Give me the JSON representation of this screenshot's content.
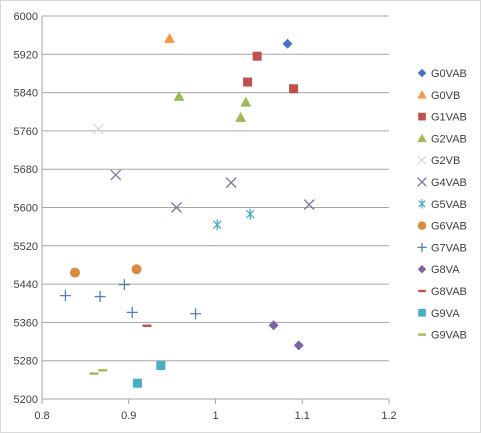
{
  "chart_data": {
    "type": "scatter",
    "xlim": [
      0.8,
      1.2
    ],
    "ylim": [
      5200,
      6000
    ],
    "xticks": [
      "0.8",
      "0.9",
      "1",
      "1.1",
      "1.2"
    ],
    "yticks": [
      "5200",
      "5280",
      "5360",
      "5440",
      "5520",
      "5600",
      "5680",
      "5760",
      "5840",
      "5920",
      "6000"
    ],
    "grid": "horizontal",
    "legend_position": "right",
    "series": [
      {
        "name": "G0VAB",
        "marker": "diamond",
        "color": "#4472C4",
        "points": [
          [
            1.083,
            5942
          ]
        ]
      },
      {
        "name": "G0VB",
        "marker": "triangle",
        "color": "#F79646",
        "points": [
          [
            0.947,
            5953
          ]
        ]
      },
      {
        "name": "G1VAB",
        "marker": "square",
        "color": "#C0504D",
        "points": [
          [
            1.048,
            5916
          ],
          [
            1.037,
            5862
          ],
          [
            1.09,
            5848
          ]
        ]
      },
      {
        "name": "G2VAB",
        "marker": "triangle",
        "color": "#9BBB59",
        "points": [
          [
            0.958,
            5832
          ],
          [
            1.035,
            5820
          ],
          [
            1.029,
            5788
          ]
        ]
      },
      {
        "name": "G2VB",
        "marker": "x",
        "color": "#D9D9D9",
        "points": [
          [
            0.865,
            5764
          ]
        ]
      },
      {
        "name": "G4VAB",
        "marker": "x",
        "color": "#7F74A8",
        "points": [
          [
            0.885,
            5668
          ],
          [
            1.018,
            5652
          ],
          [
            0.955,
            5600
          ],
          [
            1.108,
            5606
          ]
        ]
      },
      {
        "name": "G5VAB",
        "marker": "asterisk",
        "color": "#4BACC6",
        "points": [
          [
            1.002,
            5564
          ],
          [
            1.04,
            5586
          ]
        ]
      },
      {
        "name": "G6VAB",
        "marker": "circle",
        "color": "#D98A3D",
        "points": [
          [
            0.838,
            5464
          ],
          [
            0.909,
            5471
          ]
        ]
      },
      {
        "name": "G7VAB",
        "marker": "plus",
        "color": "#4F81BD",
        "points": [
          [
            0.827,
            5416
          ],
          [
            0.867,
            5414
          ],
          [
            0.895,
            5439
          ],
          [
            0.904,
            5381
          ],
          [
            0.977,
            5378
          ]
        ]
      },
      {
        "name": "G8VA",
        "marker": "diamond",
        "color": "#8064A2",
        "points": [
          [
            1.067,
            5354
          ],
          [
            1.096,
            5312
          ]
        ]
      },
      {
        "name": "G8VAB",
        "marker": "dash",
        "color": "#C0504D",
        "points": [
          [
            0.921,
            5353
          ]
        ]
      },
      {
        "name": "G9VA",
        "marker": "square",
        "color": "#4BACC6",
        "points": [
          [
            0.937,
            5270
          ],
          [
            0.91,
            5233
          ]
        ]
      },
      {
        "name": "G9VAB",
        "marker": "dash",
        "color": "#9BBB59",
        "points": [
          [
            0.86,
            5253
          ],
          [
            0.87,
            5260
          ]
        ]
      }
    ]
  }
}
